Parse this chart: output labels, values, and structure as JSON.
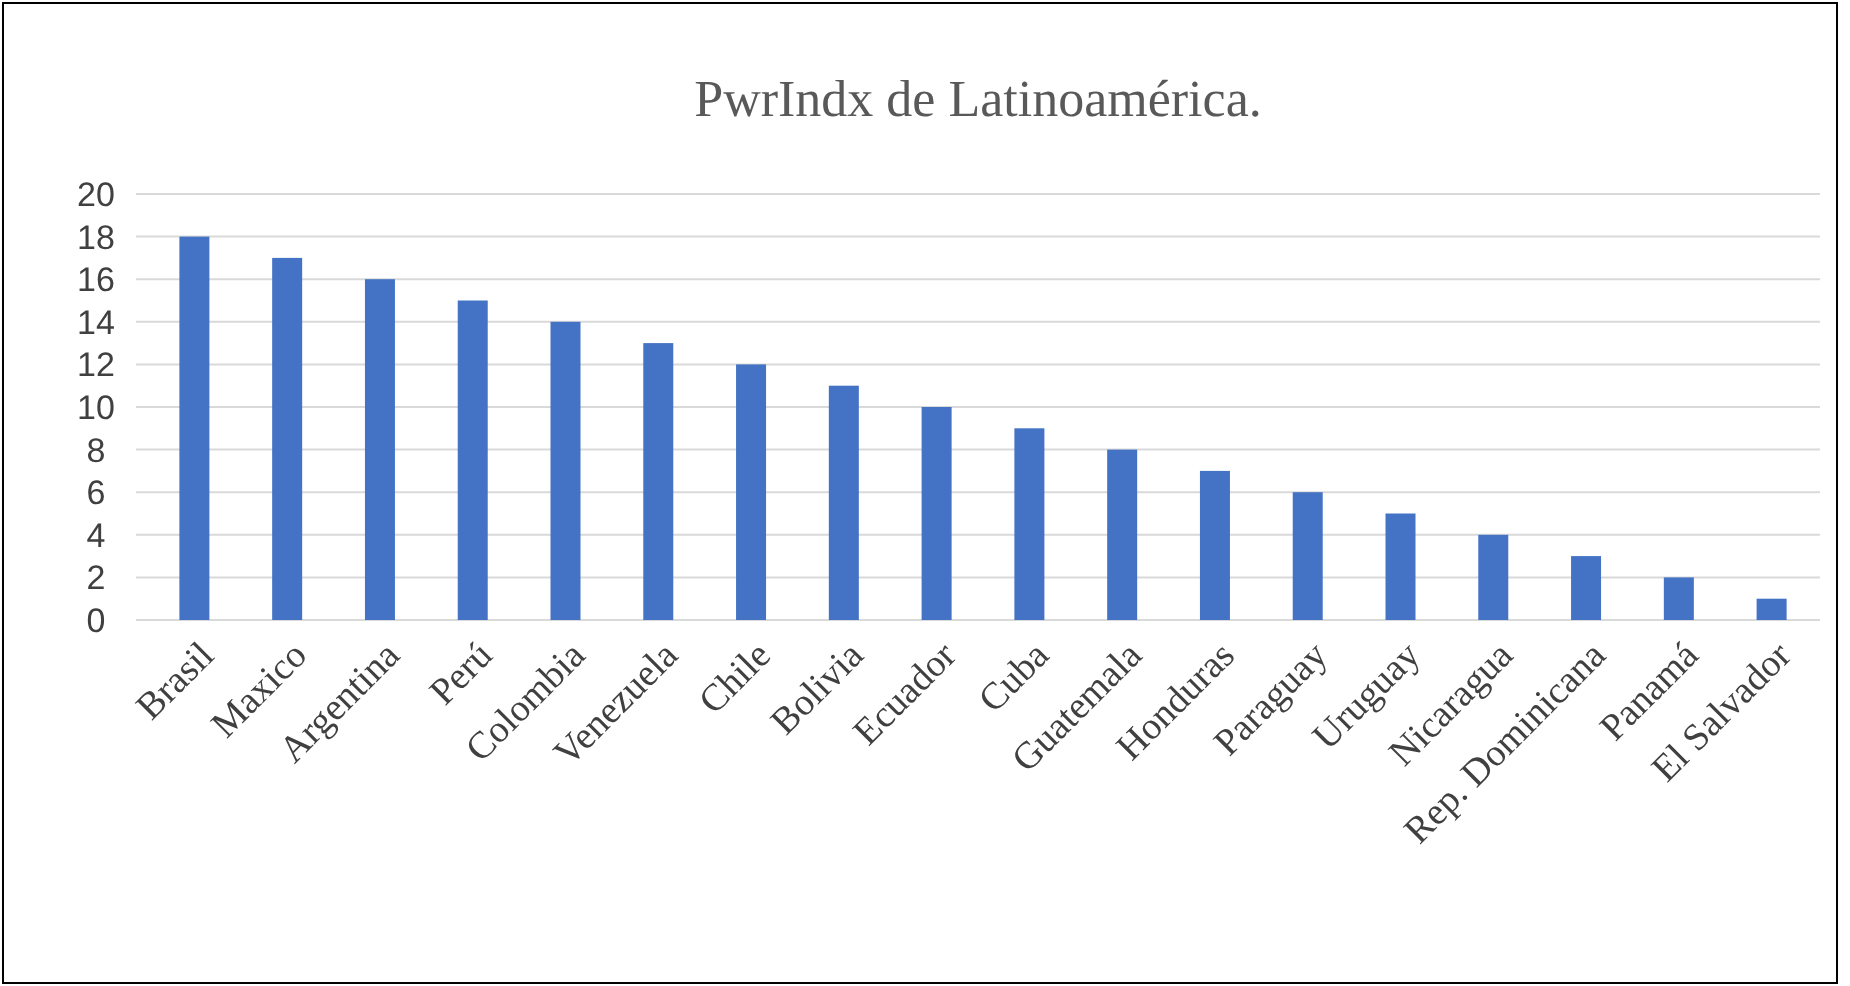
{
  "chart_data": {
    "type": "bar",
    "title": "PwrIndx de Latinoamérica.",
    "categories": [
      "Brasil",
      "Maxico",
      "Argentina",
      "Perú",
      "Colombia",
      "Venezuela",
      "Chile",
      "Bolivia",
      "Ecuador",
      "Cuba",
      "Guatemala",
      "Honduras",
      "Paraguay",
      "Uruguay",
      "Nicaragua",
      "Rep. Dominicana",
      "Panamá",
      "El Salvador"
    ],
    "values": [
      18,
      17,
      16,
      15,
      14,
      13,
      12,
      11,
      10,
      9,
      8,
      7,
      6,
      5,
      4,
      3,
      2,
      1
    ],
    "color": "#4472c4",
    "ylim": [
      0,
      20
    ],
    "yticks": [
      0,
      2,
      4,
      6,
      8,
      10,
      12,
      14,
      16,
      18,
      20
    ],
    "grid": "y"
  }
}
